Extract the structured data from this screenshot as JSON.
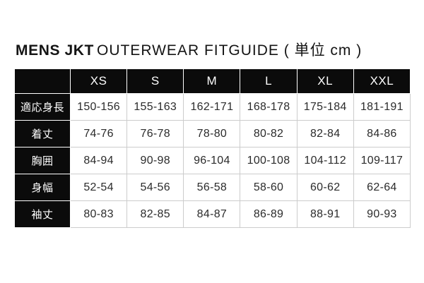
{
  "title": {
    "bold": "MENS JKT",
    "regular": "OUTERWEAR FITGUIDE ( 単位 cm )"
  },
  "colors": {
    "page_bg": "#ffffff",
    "header_bg": "#0b0b0b",
    "header_text": "#ffffff",
    "cell_border": "#cccccc",
    "cell_text": "#2b2b2b"
  },
  "chart_data": {
    "type": "table",
    "title": "MENS JKT OUTERWEAR FITGUIDE ( 単位 cm )",
    "unit": "cm",
    "corner_label": "",
    "column_headers": [
      "XS",
      "S",
      "M",
      "L",
      "XL",
      "XXL"
    ],
    "row_headers": [
      "適応身長",
      "着丈",
      "胸囲",
      "身幅",
      "袖丈"
    ],
    "rows": [
      [
        "150-156",
        "155-163",
        "162-171",
        "168-178",
        "175-184",
        "181-191"
      ],
      [
        "74-76",
        "76-78",
        "78-80",
        "80-82",
        "82-84",
        "84-86"
      ],
      [
        "84-94",
        "90-98",
        "96-104",
        "100-108",
        "104-112",
        "109-117"
      ],
      [
        "52-54",
        "54-56",
        "56-58",
        "58-60",
        "60-62",
        "62-64"
      ],
      [
        "80-83",
        "82-85",
        "84-87",
        "86-89",
        "88-91",
        "90-93"
      ]
    ]
  }
}
